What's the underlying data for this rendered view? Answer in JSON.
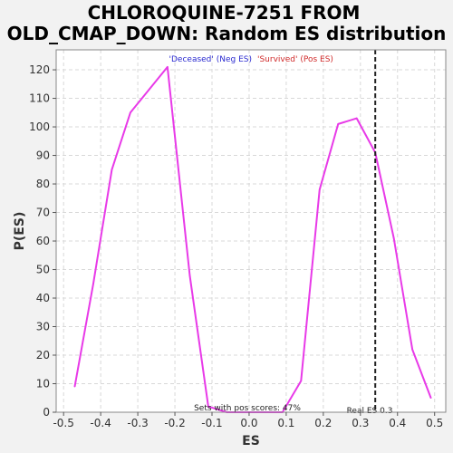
{
  "chart_data": {
    "type": "line",
    "title_line1": "CHLOROQUINE-7251 FROM",
    "title_line2": "OLD_CMAP_DOWN: Random ES distribution",
    "xlabel": "ES",
    "ylabel": "P(ES)",
    "xlim": [
      -0.52,
      0.53
    ],
    "ylim": [
      0,
      127
    ],
    "x_ticks": [
      -0.5,
      -0.4,
      -0.3,
      -0.2,
      -0.1,
      0.0,
      0.1,
      0.2,
      0.3,
      0.4,
      0.5
    ],
    "x_tick_labels": [
      "-0.5",
      "-0.4",
      "-0.3",
      "-0.2",
      "-0.1",
      "0.0",
      "0.1",
      "0.2",
      "0.3",
      "0.4",
      "0.5"
    ],
    "y_ticks": [
      0,
      10,
      20,
      30,
      40,
      50,
      60,
      70,
      80,
      90,
      100,
      110,
      120
    ],
    "y_tick_labels": [
      "0",
      "10",
      "20",
      "30",
      "40",
      "50",
      "60",
      "70",
      "80",
      "90",
      "100",
      "110",
      "120"
    ],
    "grid": true,
    "series": [
      {
        "color": "#e83ae8",
        "x": [
          -0.47,
          -0.42,
          -0.37,
          -0.32,
          -0.22,
          -0.16,
          -0.11,
          -0.06,
          -0.01,
          0.09,
          0.14,
          0.19,
          0.24,
          0.29,
          0.34,
          0.39,
          0.44,
          0.49
        ],
        "y": [
          9,
          45,
          85,
          105,
          121,
          48,
          2,
          0,
          0,
          0,
          11,
          78,
          101,
          103,
          91,
          61,
          22,
          5
        ]
      }
    ],
    "real_es": {
      "x": 0.34,
      "label": "Real ES 0.3",
      "color": "#222222"
    },
    "legend": {
      "placement": "top",
      "deceased_label": "'Deceased' (Neg ES)",
      "deceased_color": "#2a2ad0",
      "survived_label": "'Survived' (Pos ES)",
      "survived_color": "#d02a2a"
    },
    "pos_scores_label": "Sets with pos scores: 47%"
  }
}
